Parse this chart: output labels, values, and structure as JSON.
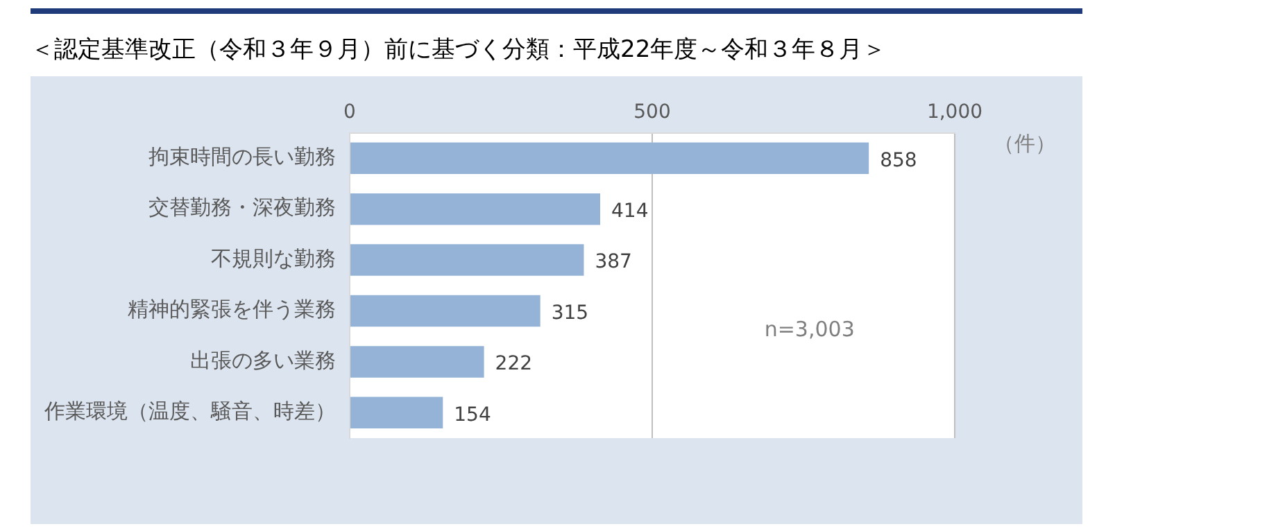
{
  "chart_data": {
    "type": "bar",
    "orientation": "horizontal",
    "title": "＜認定基準改正（令和３年９月）前に基づく分類：平成22年度～令和３年８月＞",
    "categories": [
      "拘束時間の長い勤務",
      "交替勤務・深夜勤務",
      "不規則な勤務",
      "精神的緊張を伴う業務",
      "出張の多い業務",
      "作業環境（温度、騒音、時差）"
    ],
    "values": [
      858,
      414,
      387,
      315,
      222,
      154
    ],
    "color": "#95b3d7",
    "xlim": [
      0,
      1000
    ],
    "xticks": [
      0,
      500,
      {
        "value": 1000,
        "label": "1,000"
      }
    ],
    "grid": "x",
    "data_labels": true,
    "annotations": [
      "（件）",
      "n=3,003"
    ]
  }
}
